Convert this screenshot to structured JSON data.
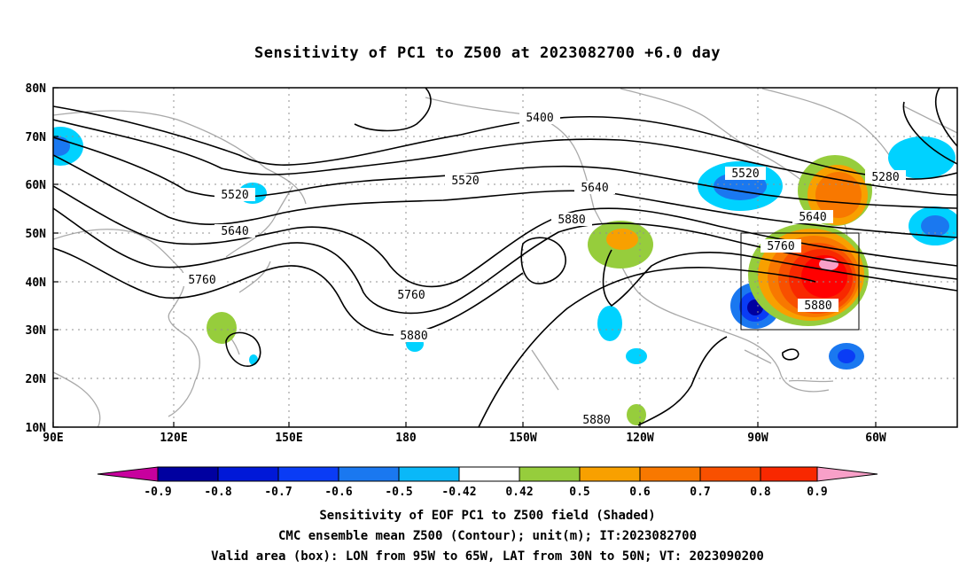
{
  "title": "Sensitivity of PC1 to Z500 at 2023082700 +6.0 day",
  "lat_labels": [
    "80N",
    "70N",
    "60N",
    "50N",
    "40N",
    "30N",
    "20N",
    "10N"
  ],
  "lon_labels": [
    "90E",
    "120E",
    "150E",
    "180",
    "150W",
    "120W",
    "90W",
    "60W"
  ],
  "contour_labels": [
    "5400",
    "5280",
    "5520",
    "5520",
    "5520",
    "5640",
    "5640",
    "5640",
    "5760",
    "5760",
    "5760",
    "5880",
    "5880",
    "5880",
    "5880"
  ],
  "colorbar": {
    "tick_labels": [
      "-0.9",
      "-0.8",
      "-0.7",
      "-0.6",
      "-0.5",
      "-0.42",
      "0.42",
      "0.5",
      "0.6",
      "0.7",
      "0.8",
      "0.9"
    ],
    "colors": [
      "#c8009e",
      "#0000a0",
      "#0018d8",
      "#0a3cf5",
      "#1a78f0",
      "#0ab8f8",
      "#00d2ff",
      "#ffffff",
      "#96cd3c",
      "#f8a000",
      "#f87800",
      "#f85000",
      "#f82800",
      "#ff0000",
      "#f8a0c8"
    ]
  },
  "valid_box": {
    "lon_west": "95W",
    "lon_east": "65W",
    "lat_south": "30N",
    "lat_north": "50N"
  },
  "captions": {
    "line1": "Sensitivity of EOF PC1 to Z500 field (Shaded)",
    "line2": "CMC ensemble mean Z500 (Contour); unit(m); IT:2023082700",
    "line3": "Valid area (box): LON from 95W to 65W, LAT from 30N to 50N; VT: 2023090200"
  }
}
